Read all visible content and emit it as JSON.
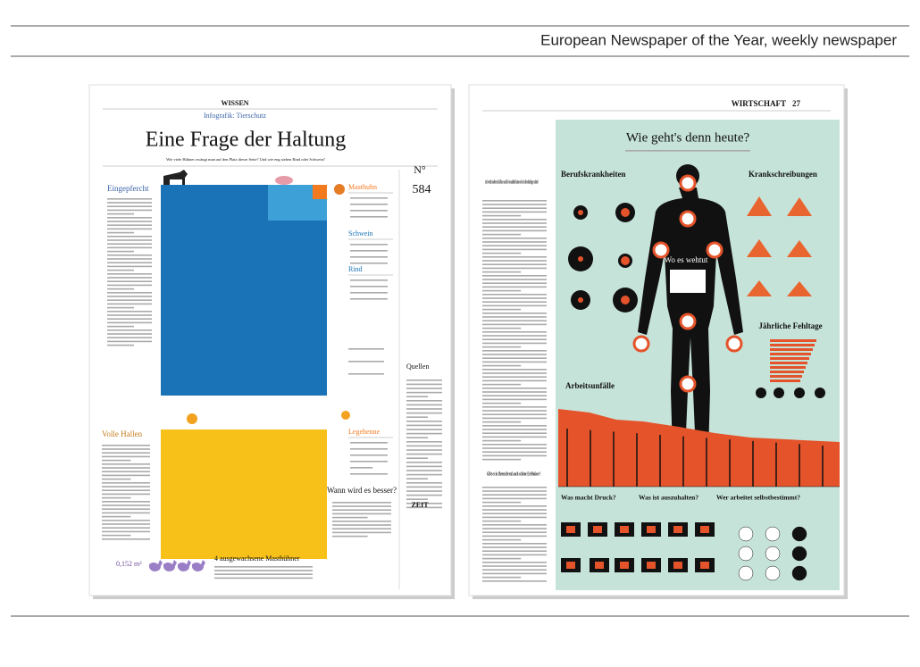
{
  "header": {
    "title": "European Newspaper of the Year, weekly newspaper"
  },
  "left_page": {
    "section": "WISSEN",
    "kicker": "Infografik: Tierschutz",
    "title": "Eine Frage der Haltung",
    "subtitle": "Wie viele Hühner zwängt man auf den Platz dieser Seite? Und wie eng stehen Rind oder Schwein?",
    "issue_label": "N°",
    "issue_number": "584",
    "labels": [
      "Masthuhn",
      "Schwein",
      "Rind",
      "Legehenne"
    ],
    "sidebar_heads": [
      "Eingepfercht",
      "Volle Hallen"
    ],
    "sources": "Quellen",
    "question": "Wann wird es besser?",
    "footer_head": "4 ausgewachsene Masthühner",
    "footer_area": "0,152 m²",
    "logo": "ZEIT"
  },
  "right_page": {
    "section": "WIRTSCHAFT",
    "page": "27",
    "title": "Wie geht's denn heute?",
    "intro_question": "Auf welche äußeren Einflüsse auf die Gesundheit können Sie als Berufstätiger achten?",
    "second_question": "Gibt es in Ihrem Beruf auch schöne Erlebnisse?",
    "panels": [
      "Berufskrankheiten",
      "Krankschreibungen",
      "Wo es wehtut",
      "Jährliche Fehltage",
      "Arbeitsunfälle",
      "Was macht Druck?",
      "Was ist auszuhalten?",
      "Wer arbeitet selbstbestimmt?"
    ]
  }
}
